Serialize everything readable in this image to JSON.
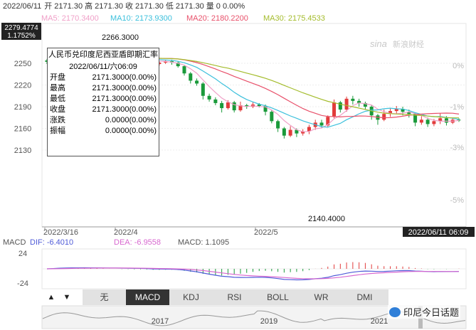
{
  "header": {
    "date": "2022/06/11",
    "ohlc_text": "开 2171.30 高 2171.30 收 2171.30 低 2171.30 量 0 0.00%",
    "ma5": "MA5: 2170.3400",
    "ma10": "MA10: 2173.9300",
    "ma20": "MA20: 2180.2200",
    "ma30": "MA30: 2175.4533"
  },
  "colors": {
    "up": "#e23b3b",
    "down": "#1a9a3a",
    "ma5": "#f0a0c8",
    "ma10": "#3cc0dc",
    "ma20": "#e8506a",
    "ma30": "#a4bc2c",
    "macd_dif": "#4f5bd8",
    "macd_dea": "#d868d0"
  },
  "price_box": {
    "value": "2279.4774",
    "pct": "1.1752%"
  },
  "watermark_top": "新浪财经",
  "tooltip": {
    "title": "人民币兑印度尼西亚盾即期汇率",
    "datetime": "2022/06/11/六06:09",
    "rows": [
      {
        "k": "开盘",
        "v": "2171.3000(0.00%)"
      },
      {
        "k": "最高",
        "v": "2171.3000(0.00%)"
      },
      {
        "k": "最低",
        "v": "2171.3000(0.00%)"
      },
      {
        "k": "收盘",
        "v": "2171.3000(0.00%)"
      },
      {
        "k": "涨跌",
        "v": "0.0000(0.00%)"
      },
      {
        "k": "振幅",
        "v": "0.0000(0.00%)"
      }
    ]
  },
  "chart_data": {
    "type": "candlestick",
    "y_ticks": [
      2130,
      2160,
      2190,
      2220,
      2250
    ],
    "pct_ticks": [
      "0%",
      "-1%",
      "-3%",
      "-5%"
    ],
    "x_labels": [
      "2022/3/16",
      "2022/4",
      "2022/5"
    ],
    "last_date_label": "2022/06/11 06:09",
    "annotations": {
      "high": "2266.3000",
      "low": "2140.4000"
    },
    "candles": [
      [
        2254,
        2252,
        2256,
        2249
      ],
      [
        2257,
        2259,
        2262,
        2255
      ],
      [
        2260,
        2262,
        2264,
        2258
      ],
      [
        2262,
        2261,
        2266,
        2259
      ],
      [
        2263,
        2262,
        2266,
        2260
      ],
      [
        2262,
        2258,
        2264,
        2256
      ],
      [
        2258,
        2260,
        2262,
        2255
      ],
      [
        2260,
        2257,
        2262,
        2255
      ],
      [
        2257,
        2259,
        2261,
        2255
      ],
      [
        2259,
        2258,
        2261,
        2256
      ],
      [
        2258,
        2257,
        2260,
        2254
      ],
      [
        2257,
        2258,
        2260,
        2255
      ],
      [
        2258,
        2256,
        2259,
        2254
      ],
      [
        2256,
        2257,
        2259,
        2253
      ],
      [
        2257,
        2255,
        2258,
        2253
      ],
      [
        2255,
        2256,
        2258,
        2253
      ],
      [
        2256,
        2254,
        2257,
        2251
      ],
      [
        2254,
        2249,
        2256,
        2247
      ],
      [
        2249,
        2251,
        2253,
        2247
      ],
      [
        2251,
        2253,
        2255,
        2249
      ],
      [
        2253,
        2251,
        2255,
        2248
      ],
      [
        2251,
        2246,
        2253,
        2244
      ],
      [
        2246,
        2236,
        2248,
        2233
      ],
      [
        2236,
        2226,
        2238,
        2222
      ],
      [
        2226,
        2222,
        2229,
        2219
      ],
      [
        2222,
        2205,
        2224,
        2200
      ],
      [
        2205,
        2200,
        2208,
        2197
      ],
      [
        2200,
        2195,
        2203,
        2192
      ],
      [
        2195,
        2188,
        2198,
        2182
      ],
      [
        2188,
        2196,
        2199,
        2186
      ],
      [
        2196,
        2185,
        2198,
        2182
      ],
      [
        2185,
        2192,
        2197,
        2183
      ],
      [
        2192,
        2190,
        2194,
        2187
      ],
      [
        2190,
        2193,
        2196,
        2188
      ],
      [
        2193,
        2191,
        2195,
        2189
      ],
      [
        2191,
        2183,
        2193,
        2178
      ],
      [
        2183,
        2170,
        2186,
        2167
      ],
      [
        2170,
        2160,
        2172,
        2155
      ],
      [
        2160,
        2150,
        2162,
        2146
      ],
      [
        2150,
        2158,
        2163,
        2148
      ],
      [
        2158,
        2153,
        2160,
        2148
      ],
      [
        2153,
        2156,
        2159,
        2150
      ],
      [
        2156,
        2162,
        2165,
        2152
      ],
      [
        2162,
        2168,
        2172,
        2158
      ],
      [
        2168,
        2164,
        2172,
        2160
      ],
      [
        2164,
        2176,
        2178,
        2162
      ],
      [
        2176,
        2196,
        2200,
        2174
      ],
      [
        2196,
        2186,
        2198,
        2182
      ],
      [
        2186,
        2201,
        2204,
        2183
      ],
      [
        2201,
        2198,
        2205,
        2193
      ],
      [
        2198,
        2195,
        2201,
        2190
      ],
      [
        2195,
        2190,
        2197,
        2186
      ],
      [
        2190,
        2178,
        2192,
        2172
      ],
      [
        2178,
        2172,
        2180,
        2165
      ],
      [
        2172,
        2180,
        2186,
        2170
      ],
      [
        2180,
        2184,
        2188,
        2176
      ],
      [
        2184,
        2187,
        2191,
        2180
      ],
      [
        2187,
        2183,
        2190,
        2178
      ],
      [
        2183,
        2180,
        2186,
        2175
      ],
      [
        2180,
        2168,
        2182,
        2163
      ],
      [
        2168,
        2172,
        2177,
        2165
      ],
      [
        2172,
        2166,
        2175,
        2162
      ],
      [
        2166,
        2170,
        2173,
        2163
      ],
      [
        2170,
        2174,
        2181,
        2166
      ],
      [
        2174,
        2168,
        2177,
        2164
      ],
      [
        2168,
        2172,
        2175,
        2166
      ],
      [
        2172,
        2171.3,
        2174,
        2169
      ]
    ],
    "macd": {
      "label": "MACD",
      "dif_label": "DIF: -6.4010",
      "dea_label": "DEA: -6.9558",
      "macd_label": "MACD: 1.1095",
      "y_ticks": [
        24,
        -24
      ]
    },
    "tabs": [
      "无",
      "MACD",
      "KDJ",
      "RSI",
      "BOLL",
      "WR",
      "DMI"
    ],
    "selected_tab": "MACD",
    "overview_years": [
      "2017",
      "2019",
      "2021"
    ]
  },
  "watermark_bottom": "印尼今日话题"
}
